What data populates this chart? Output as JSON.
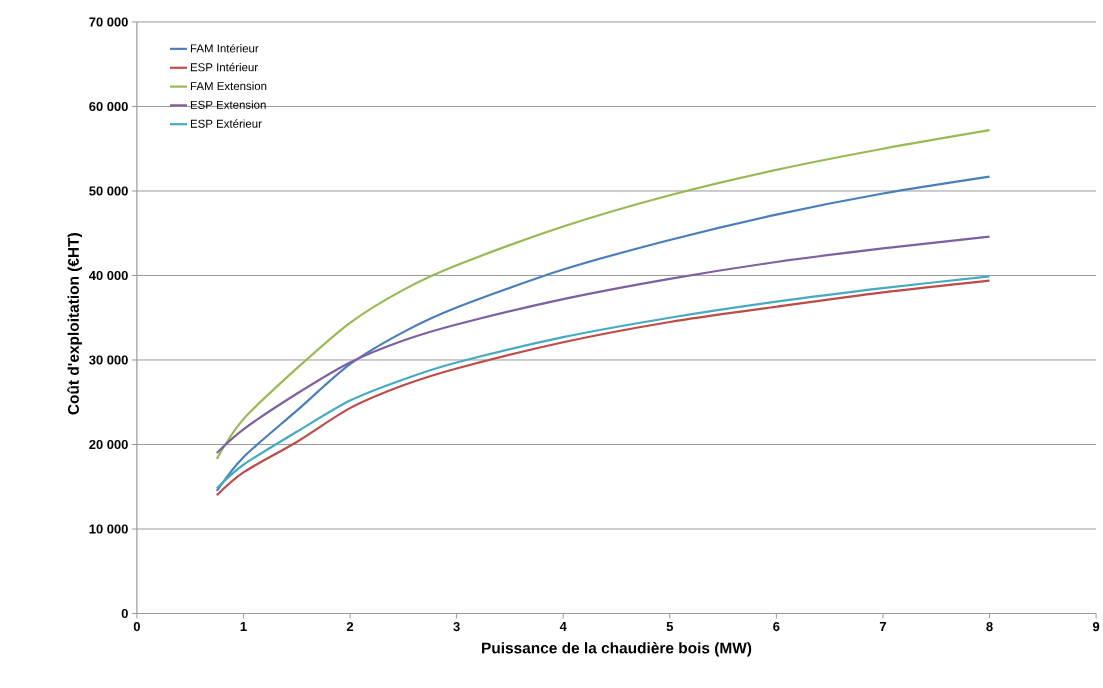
{
  "chart_data": {
    "type": "line",
    "xlabel": "Puissance de la chaudière bois (MW)",
    "ylabel": "Coût d'exploitation (€HT)",
    "x": [
      0.75,
      1,
      1.5,
      2,
      2.5,
      3,
      4,
      5,
      6,
      7,
      8
    ],
    "series": [
      {
        "name": "FAM Intérieur",
        "color": "#4a7ebb",
        "values": [
          14500,
          18500,
          24000,
          29500,
          33300,
          36200,
          40700,
          44200,
          47200,
          49700,
          51700
        ]
      },
      {
        "name": "ESP Intérieur",
        "color": "#be4b48",
        "values": [
          14000,
          16700,
          20300,
          24300,
          27000,
          29000,
          32100,
          34500,
          36300,
          38000,
          39400
        ]
      },
      {
        "name": "FAM Extension",
        "color": "#98b954",
        "values": [
          18300,
          23000,
          29000,
          34400,
          38300,
          41200,
          45800,
          49500,
          52500,
          55000,
          57200
        ]
      },
      {
        "name": "ESP Extension",
        "color": "#7d60a0",
        "values": [
          19000,
          21800,
          26000,
          29700,
          32300,
          34200,
          37200,
          39600,
          41600,
          43200,
          44600
        ]
      },
      {
        "name": "ESP Extérieur",
        "color": "#46aac5",
        "values": [
          14800,
          17600,
          21500,
          25200,
          27700,
          29700,
          32700,
          35000,
          36900,
          38500,
          39900
        ]
      }
    ],
    "xlim": [
      0,
      9
    ],
    "xticks": [
      0,
      1,
      2,
      3,
      4,
      5,
      6,
      7,
      8,
      9
    ],
    "ylim": [
      0,
      70000
    ],
    "yticks": [
      0,
      {
        "value": 10000,
        "label": "10 000"
      },
      {
        "value": 20000,
        "label": "20 000"
      },
      {
        "value": 30000,
        "label": "30 000"
      },
      {
        "value": 40000,
        "label": "40 000"
      },
      {
        "value": 50000,
        "label": "50 000"
      },
      {
        "value": 60000,
        "label": "60 000"
      },
      {
        "value": 70000,
        "label": "70 000"
      }
    ],
    "grid": "y",
    "legend": "top left",
    "marker": "none",
    "line_style": "solid"
  }
}
